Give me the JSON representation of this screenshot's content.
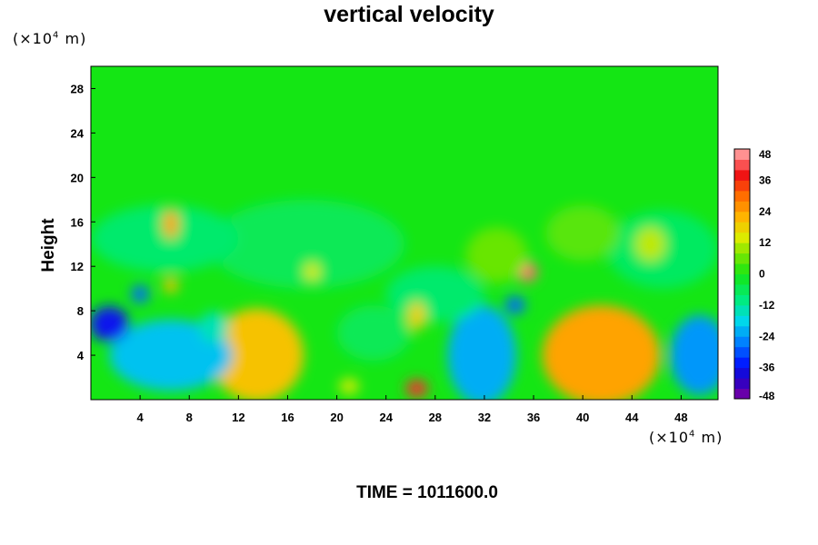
{
  "chart_data": {
    "type": "heatmap",
    "title": "vertical velocity",
    "ylabel": "Height",
    "xlabel": "",
    "x_unit": {
      "prefix": "(×10",
      "exponent": "4",
      "suffix": " m)"
    },
    "y_unit": {
      "prefix": "(×10",
      "exponent": "4",
      "suffix": " m)"
    },
    "xlim": [
      0,
      51
    ],
    "ylim": [
      0,
      30
    ],
    "x_ticks": [
      "4",
      "8",
      "12",
      "16",
      "20",
      "24",
      "28",
      "32",
      "36",
      "40",
      "44",
      "48"
    ],
    "y_ticks": [
      "4",
      "8",
      "12",
      "16",
      "20",
      "24",
      "28"
    ],
    "colorbar": {
      "range": [
        -48,
        48
      ],
      "step": 4,
      "tick_labels": [
        "48",
        "36",
        "24",
        "12",
        "0",
        "-12",
        "-24",
        "-36",
        "-48"
      ]
    },
    "background_value": 0,
    "features": [
      {
        "x": 41.5,
        "y": 3.8,
        "rx": 3.5,
        "ry": 3.2,
        "value": 48
      },
      {
        "x": 41.5,
        "y": 4.0,
        "rx": 4.8,
        "ry": 4.5,
        "value": 24
      },
      {
        "x": 14.0,
        "y": 3.8,
        "rx": 2.8,
        "ry": 3.2,
        "value": 48
      },
      {
        "x": 13.5,
        "y": 4.0,
        "rx": 3.8,
        "ry": 4.2,
        "value": 20
      },
      {
        "x": 32.0,
        "y": 4.0,
        "rx": 1.8,
        "ry": 3.2,
        "value": -48
      },
      {
        "x": 31.8,
        "y": 4.0,
        "rx": 2.8,
        "ry": 4.5,
        "value": -22
      },
      {
        "x": 8.2,
        "y": 3.4,
        "rx": 2.2,
        "ry": 2.0,
        "value": -44
      },
      {
        "x": 5.0,
        "y": 4.2,
        "rx": 2.0,
        "ry": 2.2,
        "value": -40
      },
      {
        "x": 6.5,
        "y": 4.0,
        "rx": 5.0,
        "ry": 3.2,
        "value": -20
      },
      {
        "x": 1.5,
        "y": 6.8,
        "rx": 1.6,
        "ry": 1.6,
        "value": -36
      },
      {
        "x": 49.5,
        "y": 4.0,
        "rx": 2.4,
        "ry": 3.6,
        "value": -24
      },
      {
        "x": 17.5,
        "y": 14.0,
        "rx": 8.0,
        "ry": 4.0,
        "value": -6
      },
      {
        "x": 6.0,
        "y": 14.5,
        "rx": 6.0,
        "ry": 3.0,
        "value": -8
      },
      {
        "x": 46.5,
        "y": 13.5,
        "rx": 4.5,
        "ry": 3.5,
        "value": -7
      },
      {
        "x": 28.0,
        "y": 9.5,
        "rx": 4.0,
        "ry": 2.5,
        "value": -8
      },
      {
        "x": 23.0,
        "y": 6.0,
        "rx": 3.0,
        "ry": 2.5,
        "value": -6
      },
      {
        "x": 4.0,
        "y": 9.5,
        "rx": 0.7,
        "ry": 0.8,
        "value": -28
      },
      {
        "x": 6.5,
        "y": 10.3,
        "rx": 0.6,
        "ry": 0.7,
        "value": 20
      },
      {
        "x": 35.5,
        "y": 11.5,
        "rx": 0.8,
        "ry": 0.9,
        "value": 44
      },
      {
        "x": 6.5,
        "y": 15.8,
        "rx": 0.6,
        "ry": 1.3,
        "value": 24
      },
      {
        "x": 26.5,
        "y": 7.5,
        "rx": 0.7,
        "ry": 1.3,
        "value": 18
      },
      {
        "x": 26.5,
        "y": 1.0,
        "rx": 0.9,
        "ry": 0.8,
        "value": 40
      },
      {
        "x": 21.0,
        "y": 1.2,
        "rx": 0.8,
        "ry": 0.7,
        "value": 14
      },
      {
        "x": 34.5,
        "y": 8.5,
        "rx": 0.8,
        "ry": 0.8,
        "value": -28
      },
      {
        "x": 18.0,
        "y": 11.5,
        "rx": 0.6,
        "ry": 0.8,
        "value": 14
      },
      {
        "x": 33.0,
        "y": 13.0,
        "rx": 2.5,
        "ry": 2.5,
        "value": 6
      },
      {
        "x": 40.0,
        "y": 15.0,
        "rx": 3.0,
        "ry": 2.5,
        "value": 5
      },
      {
        "x": 45.5,
        "y": 14.0,
        "rx": 1.2,
        "ry": 1.5,
        "value": 12
      },
      {
        "x": 10.0,
        "y": 6.5,
        "rx": 1.2,
        "ry": 1.4,
        "value": -14
      }
    ]
  },
  "time_label": "TIME = 1011600.0"
}
